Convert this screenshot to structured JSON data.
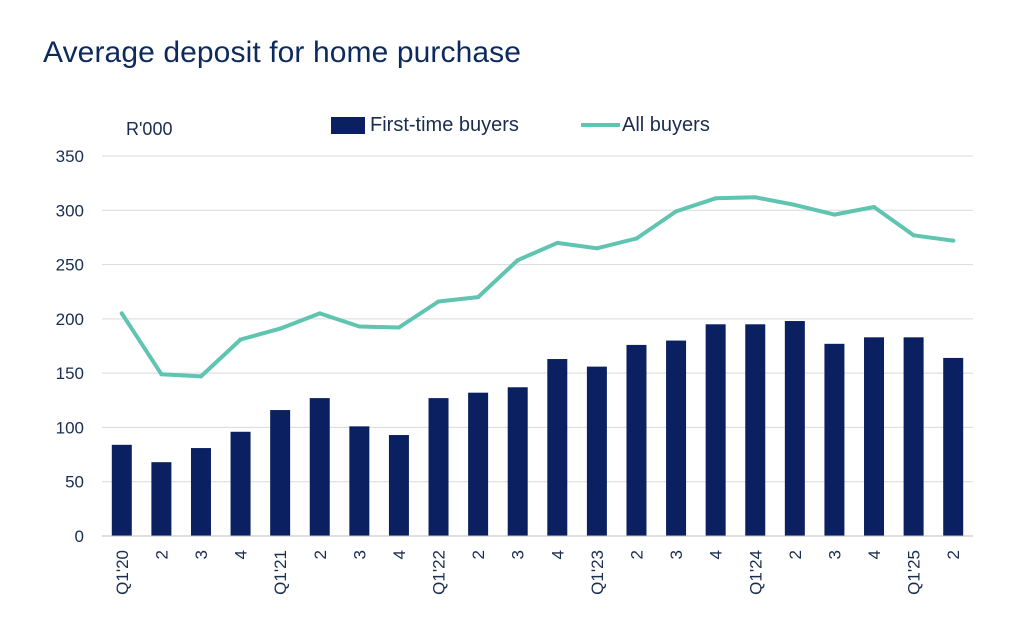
{
  "chart_data": {
    "type": "bar",
    "title": "Average deposit for home purchase",
    "unit_label": "R'000",
    "categories": [
      "Q1'20",
      "2",
      "3",
      "4",
      "Q1'21",
      "2",
      "3",
      "4",
      "Q1'22",
      "2",
      "3",
      "4",
      "Q1'23",
      "2",
      "3",
      "4",
      "Q1'24",
      "2",
      "3",
      "4",
      "Q1'25",
      "2"
    ],
    "series": [
      {
        "name": "First-time buyers",
        "type": "bar",
        "color": "#0b2060",
        "values": [
          84,
          68,
          81,
          96,
          116,
          127,
          101,
          93,
          127,
          132,
          137,
          163,
          156,
          176,
          180,
          195,
          195,
          198,
          177,
          183,
          183,
          164
        ]
      },
      {
        "name": "All buyers",
        "type": "line",
        "color": "#5fc4b0",
        "values": [
          205,
          149,
          147,
          181,
          191,
          205,
          193,
          192,
          216,
          220,
          254,
          270,
          265,
          274,
          299,
          311,
          312,
          305,
          296,
          303,
          277,
          272
        ]
      }
    ],
    "ylim": [
      0,
      350
    ],
    "yticks": [
      0,
      50,
      100,
      150,
      200,
      250,
      300,
      350
    ],
    "grid": true,
    "legend_position": "top-center",
    "xlabel": "",
    "ylabel": ""
  }
}
